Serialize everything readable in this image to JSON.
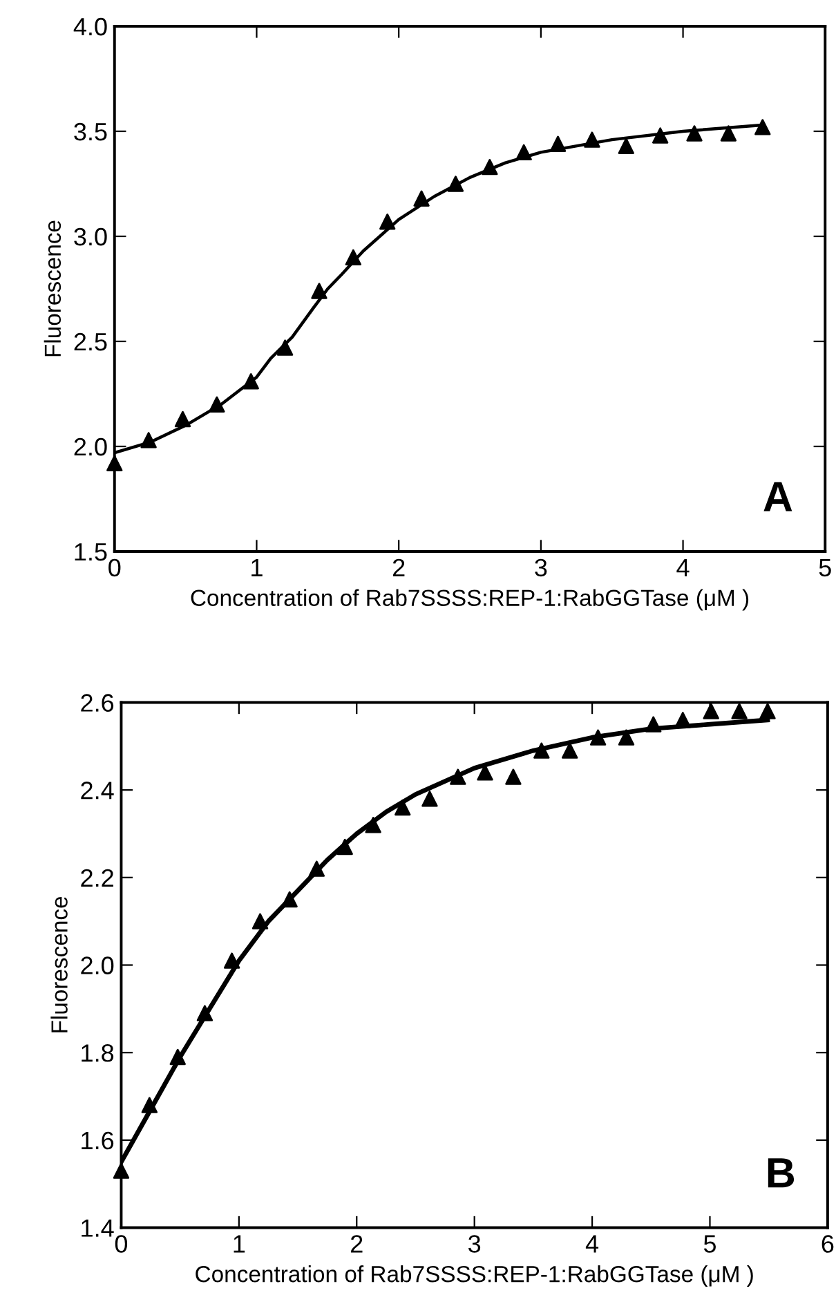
{
  "chart_data": [
    {
      "type": "scatter",
      "xlabel": "Concentration of Rab7SSSS:REP-1:RabGGTase (μM )",
      "ylabel": "Fluorescence",
      "annotations": [
        "A"
      ],
      "xlim": [
        0,
        5
      ],
      "ylim": [
        1.5,
        4.0
      ],
      "xticks": [
        0,
        1,
        2,
        3,
        4,
        5
      ],
      "yticks": [
        {
          "value": 1.5,
          "label": "1.5"
        },
        {
          "value": 2.0,
          "label": "2.0"
        },
        {
          "value": 2.5,
          "label": "2.5"
        },
        {
          "value": 3.0,
          "label": "3.0"
        },
        {
          "value": 3.5,
          "label": "3.5"
        },
        {
          "value": 4.0,
          "label": "4.0"
        }
      ],
      "grid": false,
      "legend": false,
      "series": [
        {
          "marker": "triangle",
          "color": "#000000",
          "x": [
            0,
            0.24,
            0.48,
            0.72,
            0.96,
            1.2,
            1.44,
            1.68,
            1.92,
            2.16,
            2.4,
            2.64,
            2.88,
            3.12,
            3.36,
            3.6,
            3.84,
            4.08,
            4.32,
            4.56
          ],
          "values": [
            1.92,
            2.03,
            2.13,
            2.2,
            2.31,
            2.47,
            2.74,
            2.9,
            3.07,
            3.18,
            3.25,
            3.33,
            3.4,
            3.44,
            3.46,
            3.43,
            3.48,
            3.49,
            3.49,
            3.52
          ]
        },
        {
          "type": "line",
          "color": "#000000",
          "x": [
            0,
            0.25,
            0.5,
            0.75,
            1,
            1.1,
            1.25,
            1.4,
            1.5,
            1.6,
            1.75,
            2,
            2.25,
            2.5,
            2.75,
            3,
            3.5,
            4,
            4.56
          ],
          "values": [
            1.97,
            2.02,
            2.1,
            2.2,
            2.33,
            2.42,
            2.52,
            2.66,
            2.75,
            2.82,
            2.93,
            3.08,
            3.19,
            3.28,
            3.35,
            3.4,
            3.46,
            3.5,
            3.53
          ]
        }
      ]
    },
    {
      "type": "scatter",
      "xlabel": "Concentration of Rab7SSSS:REP-1:RabGGTase (μM )",
      "ylabel": "Fluorescence",
      "annotations": [
        "B"
      ],
      "xlim": [
        0,
        6
      ],
      "ylim": [
        1.4,
        2.6
      ],
      "xticks": [
        0,
        1,
        2,
        3,
        4,
        5,
        6
      ],
      "yticks": [
        1.4,
        1.6,
        1.8,
        {
          "value": 2.0,
          "label": "2.0"
        },
        2.2,
        2.4,
        2.6
      ],
      "grid": false,
      "legend": false,
      "series": [
        {
          "marker": "triangle",
          "color": "#000000",
          "x": [
            0,
            0.24,
            0.48,
            0.71,
            0.94,
            1.18,
            1.43,
            1.66,
            1.9,
            2.14,
            2.39,
            2.62,
            2.86,
            3.09,
            3.33,
            3.57,
            3.81,
            4.05,
            4.29,
            4.52,
            4.77,
            5.01,
            5.25,
            5.49
          ],
          "values": [
            1.53,
            1.68,
            1.79,
            1.89,
            2.01,
            2.1,
            2.15,
            2.22,
            2.27,
            2.32,
            2.36,
            2.38,
            2.43,
            2.44,
            2.43,
            2.49,
            2.49,
            2.52,
            2.52,
            2.55,
            2.56,
            2.58,
            2.58,
            2.58
          ]
        },
        {
          "type": "line",
          "color": "#000000",
          "x": [
            0,
            0.25,
            0.5,
            0.75,
            1,
            1.25,
            1.5,
            1.75,
            2,
            2.25,
            2.5,
            2.75,
            3,
            3.5,
            4,
            4.5,
            5,
            5.49
          ],
          "values": [
            1.55,
            1.67,
            1.79,
            1.9,
            2.01,
            2.1,
            2.17,
            2.24,
            2.3,
            2.35,
            2.39,
            2.42,
            2.45,
            2.49,
            2.52,
            2.54,
            2.55,
            2.56
          ]
        }
      ]
    }
  ]
}
